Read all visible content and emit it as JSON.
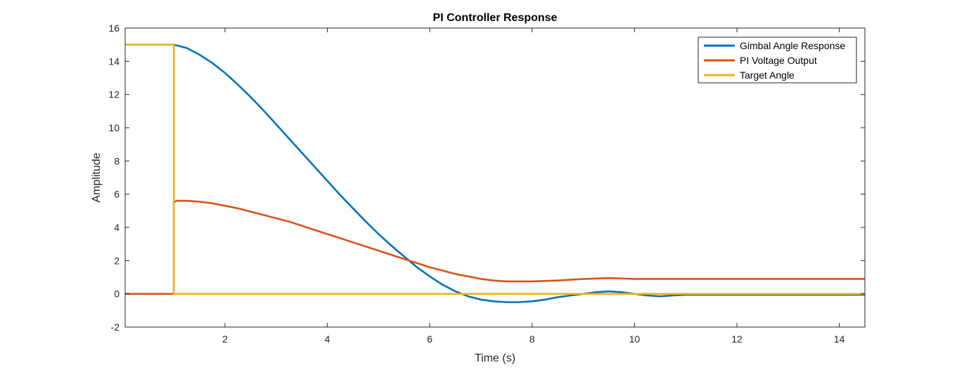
{
  "chart_data": {
    "type": "line",
    "title": "PI Controller Response",
    "xlabel": "Time (s)",
    "ylabel": "Amplitude",
    "xlim": [
      0.05,
      14.5
    ],
    "ylim": [
      -2,
      16
    ],
    "xticks": [
      2,
      4,
      6,
      8,
      10,
      12,
      14
    ],
    "yticks": [
      -2,
      0,
      2,
      4,
      6,
      8,
      10,
      12,
      14,
      16
    ],
    "grid": false,
    "legend_position": "top-right",
    "series": [
      {
        "name": "Gimbal Angle Response",
        "color": "#0072BD",
        "x": [
          0.05,
          1.0,
          1.25,
          1.5,
          1.75,
          2.0,
          2.25,
          2.5,
          2.75,
          3.0,
          3.25,
          3.5,
          3.75,
          4.0,
          4.25,
          4.5,
          4.75,
          5.0,
          5.25,
          5.5,
          5.75,
          6.0,
          6.25,
          6.5,
          6.75,
          7.0,
          7.25,
          7.5,
          7.75,
          8.0,
          8.25,
          8.5,
          8.75,
          9.0,
          9.25,
          9.5,
          9.75,
          10.0,
          10.25,
          10.5,
          10.75,
          11.0,
          11.5,
          12.0,
          12.5,
          13.0,
          13.5,
          14.0,
          14.5
        ],
        "values": [
          15.0,
          15.0,
          14.8,
          14.4,
          13.9,
          13.3,
          12.6,
          11.85,
          11.05,
          10.2,
          9.35,
          8.5,
          7.65,
          6.8,
          5.95,
          5.15,
          4.35,
          3.6,
          2.9,
          2.25,
          1.6,
          1.05,
          0.55,
          0.15,
          -0.15,
          -0.35,
          -0.45,
          -0.5,
          -0.5,
          -0.45,
          -0.35,
          -0.2,
          -0.1,
          0.0,
          0.1,
          0.15,
          0.1,
          0.0,
          -0.1,
          -0.15,
          -0.1,
          -0.05,
          -0.05,
          -0.05,
          -0.05,
          -0.05,
          -0.05,
          -0.05,
          -0.05
        ]
      },
      {
        "name": "PI Voltage Output",
        "color": "#D95319",
        "x": [
          0.05,
          1.0,
          1.0,
          1.05,
          1.25,
          1.5,
          1.75,
          2.0,
          2.25,
          2.5,
          2.75,
          3.0,
          3.25,
          3.5,
          3.75,
          4.0,
          4.25,
          4.5,
          4.75,
          5.0,
          5.25,
          5.5,
          5.75,
          6.0,
          6.25,
          6.5,
          6.75,
          7.0,
          7.25,
          7.5,
          7.75,
          8.0,
          8.5,
          9.0,
          9.5,
          10.0,
          11.0,
          12.0,
          13.0,
          14.0,
          14.5
        ],
        "values": [
          0.0,
          0.0,
          5.5,
          5.6,
          5.6,
          5.55,
          5.45,
          5.3,
          5.15,
          4.95,
          4.75,
          4.55,
          4.35,
          4.1,
          3.85,
          3.6,
          3.35,
          3.1,
          2.85,
          2.6,
          2.35,
          2.1,
          1.85,
          1.6,
          1.4,
          1.2,
          1.05,
          0.9,
          0.8,
          0.75,
          0.75,
          0.75,
          0.8,
          0.9,
          0.95,
          0.9,
          0.9,
          0.9,
          0.9,
          0.9,
          0.9
        ]
      },
      {
        "name": "Target Angle",
        "color": "#EDB120",
        "x": [
          0.05,
          1.0,
          1.0,
          14.5
        ],
        "values": [
          15.0,
          15.0,
          0.0,
          0.0
        ]
      }
    ]
  }
}
